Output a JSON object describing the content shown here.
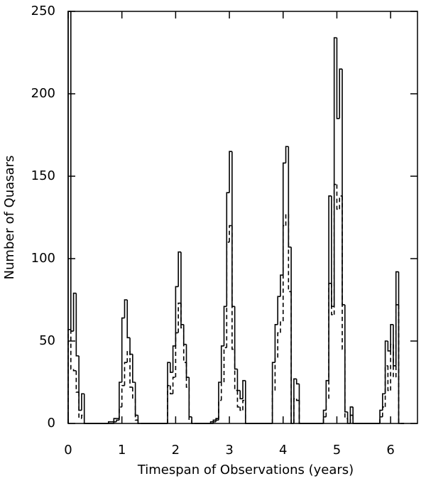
{
  "chart_data": {
    "type": "histogram",
    "xlabel": "Timespan of Observations (years)",
    "ylabel": "Number of Quasars",
    "xlim": [
      0,
      6.5
    ],
    "ylim": [
      0,
      250
    ],
    "xticks": [
      0,
      1,
      2,
      3,
      4,
      5,
      6
    ],
    "yticks": [
      0,
      50,
      100,
      150,
      200,
      250
    ],
    "bins": [
      0,
      0.05,
      0.1,
      0.15,
      0.2,
      0.25,
      0.3,
      0.35,
      0.4,
      0.45,
      0.5,
      0.55,
      0.6,
      0.65,
      0.7,
      0.75,
      0.8,
      0.85,
      0.9,
      0.95,
      1,
      1.05,
      1.1,
      1.15,
      1.2,
      1.25,
      1.3,
      1.35,
      1.4,
      1.45,
      1.5,
      1.55,
      1.6,
      1.65,
      1.7,
      1.75,
      1.8,
      1.85,
      1.9,
      1.95,
      2,
      2.05,
      2.1,
      2.15,
      2.2,
      2.25,
      2.3,
      2.35,
      2.4,
      2.45,
      2.5,
      2.55,
      2.6,
      2.65,
      2.7,
      2.75,
      2.8,
      2.85,
      2.9,
      2.95,
      3,
      3.05,
      3.1,
      3.15,
      3.2,
      3.25,
      3.3,
      3.35,
      3.4,
      3.45,
      3.5,
      3.55,
      3.6,
      3.65,
      3.7,
      3.75,
      3.8,
      3.85,
      3.9,
      3.95,
      4,
      4.05,
      4.1,
      4.15,
      4.2,
      4.25,
      4.3,
      4.35,
      4.4,
      4.45,
      4.5,
      4.55,
      4.6,
      4.65,
      4.7,
      4.75,
      4.8,
      4.85,
      4.9,
      4.95,
      5,
      5.05,
      5.1,
      5.15,
      5.2,
      5.25,
      5.3,
      5.35,
      5.4,
      5.45,
      5.5,
      5.55,
      5.6,
      5.65,
      5.7,
      5.75,
      5.8,
      5.85,
      5.9,
      5.95,
      6,
      6.05,
      6.1,
      6.15,
      6.2,
      6.25
    ],
    "series": [
      {
        "color": "#000000",
        "linestyle": "solid",
        "values": [
          250,
          56,
          79,
          41,
          8,
          18,
          0,
          0,
          0,
          0,
          0,
          0,
          0,
          0,
          0,
          1,
          1,
          3,
          3,
          25,
          64,
          75,
          52,
          42,
          25,
          5,
          0,
          0,
          0,
          0,
          0,
          0,
          0,
          0,
          0,
          0,
          0,
          37,
          31,
          47,
          83,
          104,
          60,
          48,
          28,
          4,
          0,
          0,
          0,
          0,
          0,
          0,
          0,
          1,
          2,
          3,
          25,
          47,
          71,
          140,
          165,
          71,
          33,
          20,
          15,
          26,
          0,
          0,
          0,
          0,
          0,
          0,
          0,
          0,
          0,
          0,
          37,
          60,
          77,
          90,
          158,
          168,
          107,
          0,
          27,
          24,
          0,
          0,
          0,
          0,
          0,
          0,
          0,
          0,
          0,
          8,
          26,
          138,
          71,
          234,
          185,
          215,
          72,
          7,
          0,
          10,
          0,
          0,
          0,
          0,
          0,
          0,
          0,
          0,
          0,
          0,
          8,
          18,
          50,
          44,
          60,
          35,
          92,
          0,
          0
        ]
      },
      {
        "color": "#000000",
        "linestyle": "dashed",
        "values": [
          57,
          33,
          32,
          19,
          3,
          5,
          0,
          0,
          0,
          0,
          0,
          0,
          0,
          0,
          0,
          0,
          0,
          1,
          2,
          10,
          23,
          37,
          44,
          22,
          15,
          2,
          0,
          0,
          0,
          0,
          0,
          0,
          0,
          0,
          0,
          0,
          0,
          23,
          18,
          28,
          55,
          73,
          58,
          37,
          22,
          2,
          0,
          0,
          0,
          0,
          0,
          0,
          0,
          0,
          1,
          2,
          14,
          25,
          46,
          110,
          120,
          45,
          20,
          10,
          8,
          14,
          0,
          0,
          0,
          0,
          0,
          0,
          0,
          0,
          0,
          0,
          20,
          40,
          55,
          62,
          120,
          127,
          80,
          0,
          15,
          14,
          0,
          0,
          0,
          0,
          0,
          0,
          0,
          0,
          0,
          4,
          15,
          85,
          66,
          145,
          130,
          138,
          45,
          3,
          0,
          5,
          0,
          0,
          0,
          0,
          0,
          0,
          0,
          0,
          0,
          0,
          4,
          10,
          35,
          20,
          48,
          28,
          72,
          0,
          0
        ]
      }
    ]
  }
}
